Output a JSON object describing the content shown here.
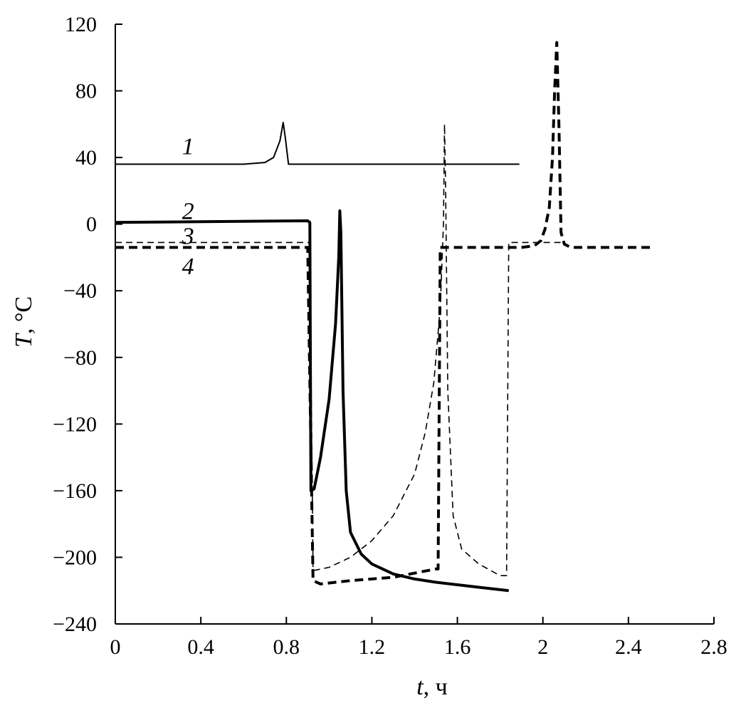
{
  "chart_data": {
    "type": "line",
    "xlabel": {
      "var": "t",
      "unit": ", ч"
    },
    "ylabel": {
      "var": "T",
      "unit": ", °С"
    },
    "xlim": [
      0,
      2.8
    ],
    "ylim": [
      -240,
      120
    ],
    "xticks": [
      0,
      0.4,
      0.8,
      1.2,
      1.6,
      2,
      2.4,
      2.8
    ],
    "xtick_labels": [
      "0",
      "0.4",
      "0.8",
      "1.2",
      "1.6",
      "2",
      "2.4",
      "2.8"
    ],
    "yticks": [
      -240,
      -200,
      -160,
      -120,
      -80,
      -40,
      0,
      40,
      80,
      120
    ],
    "ytick_labels": [
      "−240",
      "−200",
      "−160",
      "−120",
      "−80",
      "−40",
      "0",
      "40",
      "80",
      "120"
    ],
    "grid": false,
    "series": [
      {
        "label": "1",
        "style": "thin-solid",
        "label_at": [
          0.34,
          42
        ],
        "points": [
          [
            0,
            36
          ],
          [
            0.6,
            36
          ],
          [
            0.7,
            37
          ],
          [
            0.74,
            40
          ],
          [
            0.77,
            50
          ],
          [
            0.785,
            61
          ],
          [
            0.795,
            52
          ],
          [
            0.81,
            36
          ],
          [
            1.89,
            36
          ]
        ]
      },
      {
        "label": "2",
        "style": "thick-solid",
        "label_at": [
          0.34,
          3
        ],
        "points": [
          [
            0,
            1
          ],
          [
            0.9,
            2
          ],
          [
            0.91,
            1
          ],
          [
            0.915,
            -160
          ],
          [
            0.93,
            -159
          ],
          [
            0.96,
            -140
          ],
          [
            1.0,
            -105
          ],
          [
            1.03,
            -60
          ],
          [
            1.045,
            -20
          ],
          [
            1.05,
            8
          ],
          [
            1.055,
            -5
          ],
          [
            1.065,
            -100
          ],
          [
            1.08,
            -160
          ],
          [
            1.1,
            -185
          ],
          [
            1.15,
            -198
          ],
          [
            1.2,
            -204
          ],
          [
            1.3,
            -210
          ],
          [
            1.4,
            -213
          ],
          [
            1.5,
            -215
          ],
          [
            1.6,
            -216.5
          ],
          [
            1.7,
            -218
          ],
          [
            1.84,
            -220
          ]
        ]
      },
      {
        "label": "3",
        "style": "thin-dashed",
        "label_at": [
          0.34,
          -12
        ],
        "points": [
          [
            0,
            -11
          ],
          [
            0.91,
            -11
          ],
          [
            0.925,
            -208
          ],
          [
            1.0,
            -206
          ],
          [
            1.1,
            -200
          ],
          [
            1.2,
            -190
          ],
          [
            1.3,
            -175
          ],
          [
            1.4,
            -150
          ],
          [
            1.45,
            -125
          ],
          [
            1.49,
            -95
          ],
          [
            1.52,
            -50
          ],
          [
            1.535,
            0
          ],
          [
            1.54,
            60
          ],
          [
            1.545,
            20
          ],
          [
            1.555,
            -100
          ],
          [
            1.58,
            -175
          ],
          [
            1.62,
            -195
          ],
          [
            1.7,
            -204
          ],
          [
            1.8,
            -211
          ],
          [
            1.83,
            -211
          ],
          [
            1.84,
            -11
          ],
          [
            2.09,
            -11
          ]
        ]
      },
      {
        "label": "4",
        "style": "thick-dashed",
        "label_at": [
          0.34,
          -30
        ],
        "points": [
          [
            0,
            -14
          ],
          [
            0.9,
            -14
          ],
          [
            0.925,
            -214
          ],
          [
            0.96,
            -216
          ],
          [
            1.1,
            -214
          ],
          [
            1.3,
            -212
          ],
          [
            1.5,
            -207
          ],
          [
            1.51,
            -207
          ],
          [
            1.52,
            -14
          ],
          [
            1.9,
            -14
          ],
          [
            1.96,
            -13
          ],
          [
            1.99,
            -10
          ],
          [
            2.01,
            -3
          ],
          [
            2.03,
            10
          ],
          [
            2.045,
            40
          ],
          [
            2.055,
            80
          ],
          [
            2.065,
            109
          ],
          [
            2.075,
            60
          ],
          [
            2.085,
            -5
          ],
          [
            2.1,
            -12
          ],
          [
            2.13,
            -14
          ],
          [
            2.52,
            -14
          ]
        ]
      }
    ]
  }
}
